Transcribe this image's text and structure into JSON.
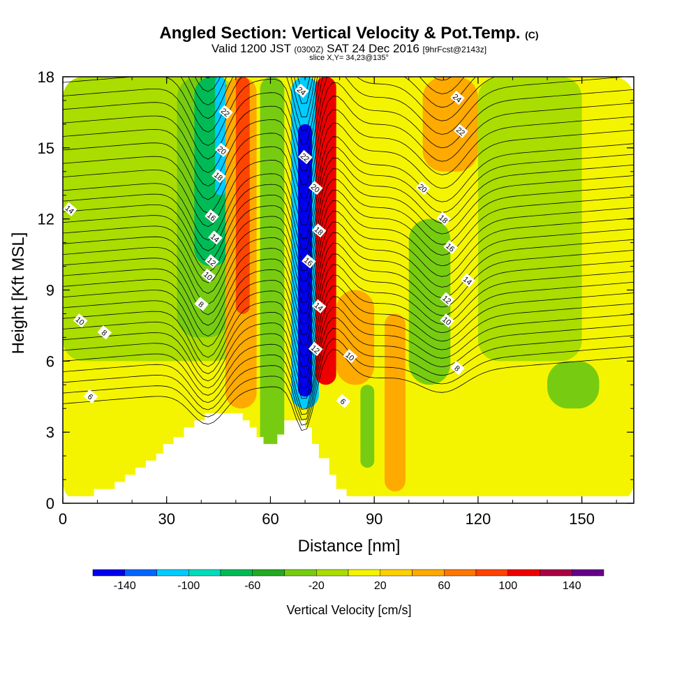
{
  "chart_data": {
    "type": "heatmap",
    "title": "Angled Section: Vertical Velocity & Pot.Temp.",
    "title_unit": "(C)",
    "subtitle_main": "Valid 1200 JST",
    "subtitle_utc": "(0300Z)",
    "subtitle_date": "SAT 24 Dec 2016",
    "subtitle_fcst": "[9hrFcst@2143z]",
    "slice_label": "slice X,Y= 34,23@135°",
    "xlabel": "Distance [nm]",
    "ylabel": "Height [Kft MSL]",
    "xlim": [
      0,
      165
    ],
    "ylim": [
      0,
      18
    ],
    "x_ticks": [
      "0",
      "30",
      "60",
      "90",
      "120",
      "150"
    ],
    "y_ticks": [
      "0",
      "3",
      "6",
      "9",
      "12",
      "15",
      "18"
    ],
    "grid": false,
    "colorbar": {
      "label": "Vertical Velocity [cm/s]",
      "ticks": [
        "-140",
        "-100",
        "-60",
        "-20",
        "20",
        "60",
        "100",
        "140"
      ],
      "levels": [
        -160,
        -140,
        -120,
        -100,
        -80,
        -60,
        -40,
        -20,
        0,
        20,
        40,
        60,
        80,
        100,
        120,
        140,
        160
      ],
      "colors": [
        "#0000ee",
        "#0066ff",
        "#00ccff",
        "#00ddbb",
        "#00bb55",
        "#22aa22",
        "#77cc11",
        "#aadd00",
        "#f4f400",
        "#ffd000",
        "#ffaa00",
        "#ff7700",
        "#ff4400",
        "#ee0000",
        "#aa0044",
        "#660088"
      ]
    },
    "vertical_velocity_bands": [
      {
        "x": [
          0,
          165
        ],
        "ymax": 18,
        "value": 10
      },
      {
        "x": [
          0,
          50
        ],
        "y_min": 6,
        "ymax": 18,
        "value": -10
      },
      {
        "x": [
          33,
          48
        ],
        "y_min": 7,
        "ymax": 18,
        "value": -30
      },
      {
        "x": [
          38,
          48
        ],
        "y_min": 10,
        "ymax": 18,
        "value": -75
      },
      {
        "x": [
          44,
          47
        ],
        "y_min": 13,
        "ymax": 18,
        "value": -110
      },
      {
        "x": [
          47,
          56
        ],
        "y_min": 4,
        "ymax": 18,
        "value": 50
      },
      {
        "x": [
          50,
          54
        ],
        "y_min": 8,
        "ymax": 18,
        "value": 90
      },
      {
        "x": [
          57,
          64
        ],
        "y_min": 2,
        "ymax": 18,
        "value": -30
      },
      {
        "x": [
          66,
          74
        ],
        "y_min": 4,
        "ymax": 18,
        "value": -110
      },
      {
        "x": [
          68,
          72
        ],
        "y_min": 4.5,
        "ymax": 16,
        "value": -150
      },
      {
        "x": [
          73,
          79
        ],
        "y_min": 5,
        "ymax": 18,
        "value": 100
      },
      {
        "x": [
          79,
          90
        ],
        "y_min": 5,
        "ymax": 9,
        "value": 50
      },
      {
        "x": [
          86,
          90
        ],
        "y_min": 1.5,
        "ymax": 5,
        "value": -30
      },
      {
        "x": [
          93,
          99
        ],
        "y_min": 0.5,
        "ymax": 8,
        "value": 40
      },
      {
        "x": [
          100,
          112
        ],
        "y_min": 5,
        "ymax": 12,
        "value": -30
      },
      {
        "x": [
          104,
          120
        ],
        "y_min": 14,
        "ymax": 18,
        "value": 50
      },
      {
        "x": [
          120,
          150
        ],
        "y_min": 6,
        "ymax": 18,
        "value": -10
      },
      {
        "x": [
          140,
          155
        ],
        "y_min": 4,
        "ymax": 6,
        "value": -30
      }
    ],
    "potential_temperature": {
      "unit": "C",
      "labeled_contours": [
        "6",
        "8",
        "10",
        "12",
        "14",
        "16",
        "18",
        "20",
        "22",
        "24"
      ]
    }
  }
}
